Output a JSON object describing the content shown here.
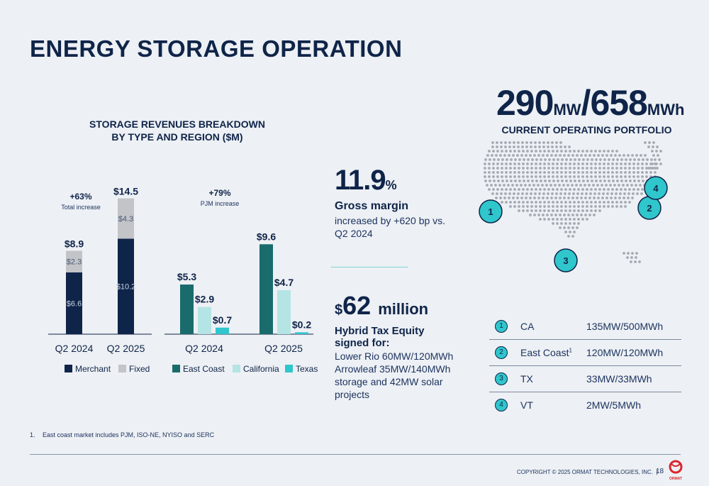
{
  "slide": {
    "title": "ENERGY STORAGE OPERATION"
  },
  "revenue_chart": {
    "title_line1": "STORAGE REVENUES BREAKDOWN",
    "title_line2": "BY TYPE AND REGION ($M)"
  },
  "chart_data": [
    {
      "type": "bar",
      "stacked": true,
      "categories": [
        "Q2 2024",
        "Q2 2025"
      ],
      "series": [
        {
          "name": "Merchant",
          "color": "#0f2449",
          "values": [
            6.6,
            10.2
          ],
          "labels": [
            "$6.6",
            "$10.2"
          ]
        },
        {
          "name": "Fixed",
          "color": "#c2c4c8",
          "values": [
            2.3,
            4.3
          ],
          "labels": [
            "$2.3",
            "$4.3"
          ]
        }
      ],
      "totals": [
        8.9,
        14.5
      ],
      "total_labels": [
        "$8.9",
        "$14.5"
      ],
      "annotation": {
        "value": "+63%",
        "text": "Total increase"
      }
    },
    {
      "type": "bar",
      "stacked": false,
      "categories": [
        "Q2 2024",
        "Q2 2025"
      ],
      "series": [
        {
          "name": "East Coast",
          "color": "#1a6b6b",
          "values": [
            5.3,
            9.6
          ],
          "labels": [
            "$5.3",
            "$9.6"
          ]
        },
        {
          "name": "California",
          "color": "#b5e4e4",
          "values": [
            2.9,
            4.7
          ],
          "labels": [
            "$2.9",
            "$4.7"
          ]
        },
        {
          "name": "Texas",
          "color": "#2fc6cc",
          "values": [
            0.7,
            0.2
          ],
          "labels": [
            "$0.7",
            "$0.2"
          ]
        }
      ],
      "annotation": {
        "value": "+79%",
        "text": "PJM increase"
      }
    }
  ],
  "gross_margin": {
    "value": "11.9",
    "unit": "%",
    "label": "Gross margin",
    "desc": "increased by +620 bp vs. Q2 2024"
  },
  "tax_equity": {
    "dollar": "$",
    "value": "62",
    "unit": "million",
    "label": "Hybrid Tax Equity signed for:",
    "desc": "Lower Rio 60MW/120MWh Arrowleaf 35MW/140MWh storage and 42MW solar projects"
  },
  "portfolio": {
    "mw": "290",
    "mw_unit": "MW",
    "slash": "/",
    "mwh": "658",
    "mwh_unit": "MWh",
    "subtitle": "CURRENT OPERATING PORTFOLIO",
    "rows": [
      {
        "num": "1",
        "region": "CA",
        "sup": "",
        "capacity": "135MW/500MWh"
      },
      {
        "num": "2",
        "region": "East Coast",
        "sup": "1",
        "capacity": "120MW/120MWh"
      },
      {
        "num": "3",
        "region": "TX",
        "sup": "",
        "capacity": "33MW/33MWh"
      },
      {
        "num": "4",
        "region": "VT",
        "sup": "",
        "capacity": "2MW/5MWh"
      }
    ]
  },
  "map_markers": [
    "1",
    "2",
    "3",
    "4"
  ],
  "footnote": {
    "num": "1.",
    "text": "East coast market includes PJM, ISO-NE, NYISO and SERC"
  },
  "footer": {
    "copyright": "COPYRIGHT © 2025 ORMAT TECHNOLOGIES, INC.",
    "separator": "|",
    "page": "18",
    "logo_text": "ORMAT"
  }
}
